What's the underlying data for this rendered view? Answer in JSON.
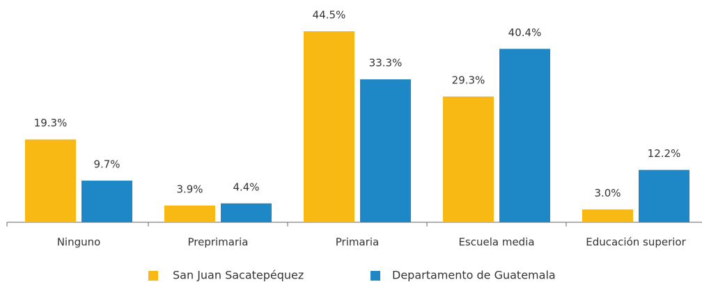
{
  "chart_data": {
    "type": "bar",
    "categories": [
      "Ninguno",
      "Preprimaria",
      "Primaria",
      "Escuela media",
      "Educación superior"
    ],
    "series": [
      {
        "name": "San Juan Sacatepéquez",
        "color": "#f9b914",
        "values": [
          19.3,
          3.9,
          44.5,
          29.3,
          3.0
        ],
        "value_labels": [
          "19.3%",
          "3.9%",
          "44.5%",
          "29.3%",
          "3.0%"
        ]
      },
      {
        "name": "Departamento de Guatemala",
        "color": "#1e88c7",
        "values": [
          9.7,
          4.4,
          33.3,
          40.4,
          12.2
        ],
        "value_labels": [
          "9.7%",
          "4.4%",
          "33.3%",
          "40.4%",
          "12.2%"
        ]
      }
    ],
    "legend": "bottom"
  }
}
